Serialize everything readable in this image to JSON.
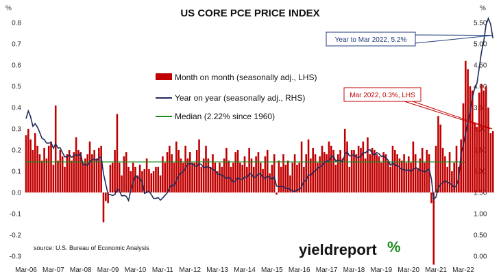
{
  "chart_data": {
    "type": "bar",
    "title": "US CORE PCE PRICE INDEX",
    "left_axis": {
      "unit": "%",
      "ylim": [
        -0.3,
        0.8
      ],
      "ticks": [
        "-0.3",
        "-0.2",
        "-0.1",
        "0.0",
        "0.1",
        "0.2",
        "0.3",
        "0.4",
        "0.5",
        "0.6",
        "0.7",
        "0.8"
      ]
    },
    "right_axis": {
      "unit": "%",
      "ylim": [
        0.0,
        5.5
      ],
      "ticks": [
        "0.00",
        "0.50",
        "1.00",
        "1.50",
        "2.00",
        "2.50",
        "3.00",
        "3.50",
        "4.00",
        "4.50",
        "5.00",
        "5.50"
      ]
    },
    "x_tick_labels": [
      "Mar-06",
      "Mar-07",
      "Mar-08",
      "Mar-09",
      "Mar-10",
      "Mar-11",
      "Mar-12",
      "Mar-13",
      "Mar-14",
      "Mar-15",
      "Mar-16",
      "Mar-17",
      "Mar-18",
      "Mar-19",
      "Mar-20",
      "Mar-21",
      "Mar-22"
    ],
    "series": [
      {
        "name": "Month on month (seasonally adj., LHS)",
        "kind": "bar",
        "axis": "left",
        "color": "#c00000",
        "yearly_values": [
          [
            0.27,
            0.3,
            0.25,
            0.2,
            0.28,
            0.22,
            0.18,
            0.15,
            0.21,
            0.16,
            0.22,
            0.24
          ],
          [
            0.13,
            0.41,
            0.15,
            0.2,
            0.17,
            0.12,
            0.18,
            0.2,
            0.15,
            0.19,
            0.26,
            0.2
          ],
          [
            0.19,
            0.14,
            0.16,
            0.18,
            0.24,
            0.18,
            0.2,
            0.16,
            0.21,
            0.22,
            -0.14,
            -0.04
          ],
          [
            -0.05,
            0.13,
            0.14,
            0.2,
            0.37,
            0.14,
            0.08,
            0.17,
            0.19,
            0.12,
            0.1,
            0.14
          ],
          [
            0.12,
            0.08,
            0.13,
            0.1,
            0.11,
            0.16,
            0.11,
            0.09,
            0.1,
            0.12,
            0.12,
            0.08
          ],
          [
            0.17,
            0.14,
            0.19,
            0.22,
            0.18,
            0.14,
            0.24,
            0.2,
            0.16,
            0.14,
            0.22,
            0.16
          ],
          [
            0.19,
            0.14,
            0.14,
            0.2,
            0.25,
            0.12,
            0.16,
            0.22,
            0.16,
            0.12,
            0.18,
            0.14
          ],
          [
            0.1,
            0.14,
            0.12,
            0.16,
            0.21,
            0.15,
            0.12,
            0.14,
            0.19,
            0.2,
            0.14,
            0.13
          ],
          [
            0.17,
            0.12,
            0.21,
            0.16,
            0.12,
            0.17,
            0.19,
            0.14,
            0.11,
            0.17,
            0.2,
            0.09
          ],
          [
            0.13,
            0.18,
            -0.01,
            0.15,
            0.12,
            0.18,
            0.13,
            0.15,
            0.08,
            0.14,
            0.18,
            0.13
          ],
          [
            0.14,
            0.24,
            0.12,
            0.18,
            0.25,
            0.16,
            0.21,
            0.18,
            0.14,
            0.17,
            0.22,
            0.19
          ],
          [
            0.18,
            0.24,
            0.22,
            0.2,
            0.13,
            0.18,
            0.2,
            0.16,
            0.3,
            0.24,
            0.12,
            0.2
          ],
          [
            0.2,
            0.18,
            0.22,
            0.21,
            0.24,
            0.16,
            0.26,
            0.18,
            0.21,
            0.2,
            0.18,
            0.17
          ],
          [
            0.14,
            0.19,
            0.18,
            0.15,
            0.12,
            0.22,
            0.2,
            0.18,
            0.16,
            0.15,
            0.18,
            0.14
          ],
          [
            0.17,
            0.14,
            0.24,
            0.18,
            0.11,
            0.16,
            0.21,
            0.14,
            0.2,
            0.18,
            -0.05,
            -0.34
          ],
          [
            0.22,
            0.36,
            0.32,
            0.21,
            0.17,
            0.12,
            0.19,
            0.1,
            0.14,
            0.22,
            0.12,
            0.25
          ],
          [
            0.42,
            0.62,
            0.58,
            0.5,
            0.48,
            0.33,
            0.31,
            0.47,
            0.51,
            0.48,
            0.5,
            0.4
          ],
          [
            0.28,
            0.29
          ]
        ]
      },
      {
        "name": "Year on year (seasonally adj., RHS)",
        "kind": "line",
        "axis": "right",
        "color": "#1f2a5a"
      },
      {
        "name": "Median (2.22% since 1960)",
        "kind": "hline",
        "axis": "right",
        "value": 2.22,
        "color": "#1e8a1e"
      }
    ],
    "annotations": [
      {
        "text": "Year to Mar 2022, 5.2%",
        "color": "#1f3a7a",
        "value": 5.2
      },
      {
        "text": "Mar 2022, 0.3%, LHS",
        "color": "#c00000",
        "value": 0.3
      }
    ],
    "source": "source: U.S. Bureau of Economic Analysis",
    "brand": "yieldreport",
    "grid": false,
    "legend": "top-center"
  }
}
